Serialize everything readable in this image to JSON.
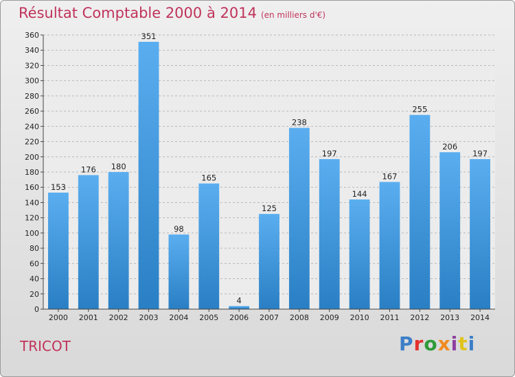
{
  "chart_data": {
    "type": "bar",
    "title": "Résultat Comptable 2000 à 2014",
    "subtitle": "(en milliers d'€)",
    "categories": [
      "2000",
      "2001",
      "2002",
      "2003",
      "2004",
      "2005",
      "2006",
      "2007",
      "2008",
      "2009",
      "2010",
      "2011",
      "2012",
      "2013",
      "2014"
    ],
    "values": [
      153,
      176,
      180,
      351,
      98,
      165,
      4,
      125,
      238,
      197,
      144,
      167,
      255,
      206,
      197
    ],
    "ylim": [
      0,
      360
    ],
    "ytick_step": 20,
    "grid": true,
    "bar_color_top": "#5aaef0",
    "bar_color_bottom": "#2a7fc4",
    "xlabel": "",
    "ylabel": ""
  },
  "footer": {
    "commune": "TRICOT",
    "brand_letters": [
      "P",
      "r",
      "o",
      "x",
      "i",
      "t",
      "i"
    ]
  },
  "colors": {
    "title": "#c0335a",
    "grid": "#b8b8b8",
    "axis": "#444444"
  }
}
